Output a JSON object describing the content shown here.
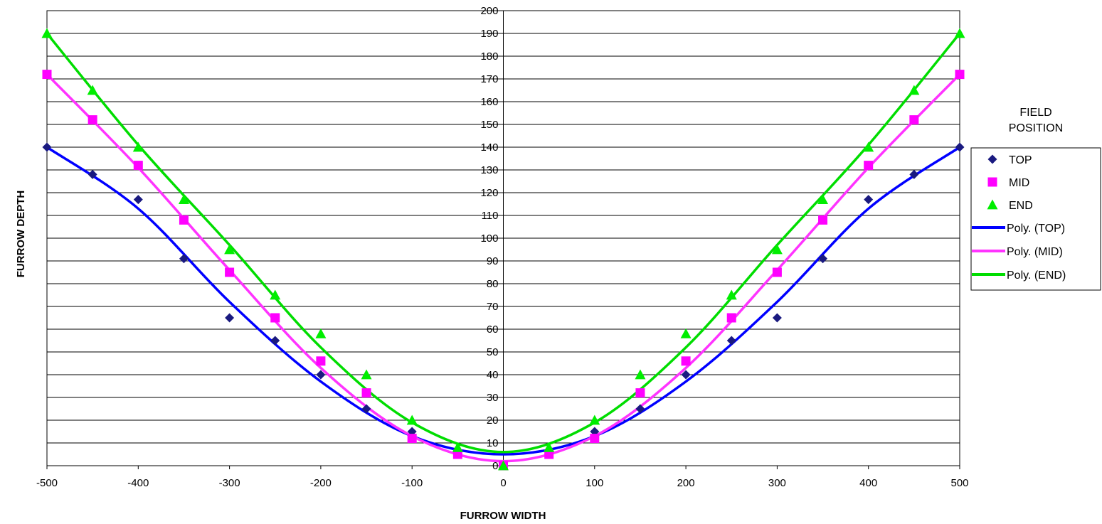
{
  "chart_data": {
    "type": "scatter",
    "xlabel": "FURROW WIDTH",
    "ylabel": "FURROW DEPTH",
    "xlim": [
      -500,
      500
    ],
    "ylim": [
      0,
      200
    ],
    "x_ticks": [
      -500,
      -400,
      -300,
      -200,
      -100,
      0,
      100,
      200,
      300,
      400,
      500
    ],
    "y_ticks": [
      0,
      10,
      20,
      30,
      40,
      50,
      60,
      70,
      80,
      90,
      100,
      110,
      120,
      130,
      140,
      150,
      160,
      170,
      180,
      190,
      200
    ],
    "grid": "horizontal",
    "legend_title": "FIELD POSITION",
    "legend_position": "right",
    "series": [
      {
        "name": "TOP",
        "marker": "diamond",
        "color": "#1a1a80",
        "x": [
          -500,
          -450,
          -400,
          -350,
          -300,
          -250,
          -200,
          -150,
          -100,
          -50,
          0,
          50,
          100,
          150,
          200,
          250,
          300,
          350,
          400,
          450,
          500
        ],
        "y": [
          140,
          128,
          117,
          91,
          65,
          55,
          40,
          25,
          15,
          5,
          0,
          5,
          15,
          25,
          40,
          55,
          65,
          91,
          117,
          128,
          140
        ]
      },
      {
        "name": "MID",
        "marker": "square",
        "color": "#ff00ff",
        "x": [
          -500,
          -450,
          -400,
          -350,
          -300,
          -250,
          -200,
          -150,
          -100,
          -50,
          0,
          50,
          100,
          150,
          200,
          250,
          300,
          350,
          400,
          450,
          500
        ],
        "y": [
          172,
          152,
          132,
          108,
          85,
          65,
          46,
          32,
          12,
          5,
          0,
          5,
          12,
          32,
          46,
          65,
          85,
          108,
          132,
          152,
          172
        ]
      },
      {
        "name": "END",
        "marker": "triangle",
        "color": "#00ee00",
        "x": [
          -500,
          -450,
          -400,
          -350,
          -300,
          -250,
          -200,
          -150,
          -100,
          -50,
          0,
          50,
          100,
          150,
          200,
          250,
          300,
          350,
          400,
          450,
          500
        ],
        "y": [
          190,
          165,
          140,
          117,
          95,
          75,
          58,
          40,
          20,
          8,
          0,
          8,
          20,
          40,
          58,
          75,
          95,
          117,
          140,
          165,
          190
        ]
      }
    ],
    "trendlines": [
      {
        "name": "Poly. (TOP)",
        "color": "#0000ff",
        "x": [
          -500,
          -400,
          -300,
          -200,
          -100,
          0,
          100,
          200,
          300,
          400,
          500
        ],
        "y": [
          140,
          113,
          72,
          37,
          13,
          5,
          13,
          37,
          72,
          113,
          140
        ]
      },
      {
        "name": "Poly. (MID)",
        "color": "#ff33ff",
        "x": [
          -500,
          -400,
          -300,
          -200,
          -100,
          0,
          100,
          200,
          300,
          400,
          500
        ],
        "y": [
          172,
          131,
          86,
          43,
          13,
          2,
          13,
          43,
          86,
          131,
          172
        ]
      },
      {
        "name": "Poly. (END)",
        "color": "#00dd00",
        "x": [
          -500,
          -400,
          -300,
          -200,
          -100,
          0,
          100,
          200,
          300,
          400,
          500
        ],
        "y": [
          190,
          141,
          97,
          52,
          19,
          6,
          19,
          52,
          97,
          141,
          190
        ]
      }
    ]
  }
}
